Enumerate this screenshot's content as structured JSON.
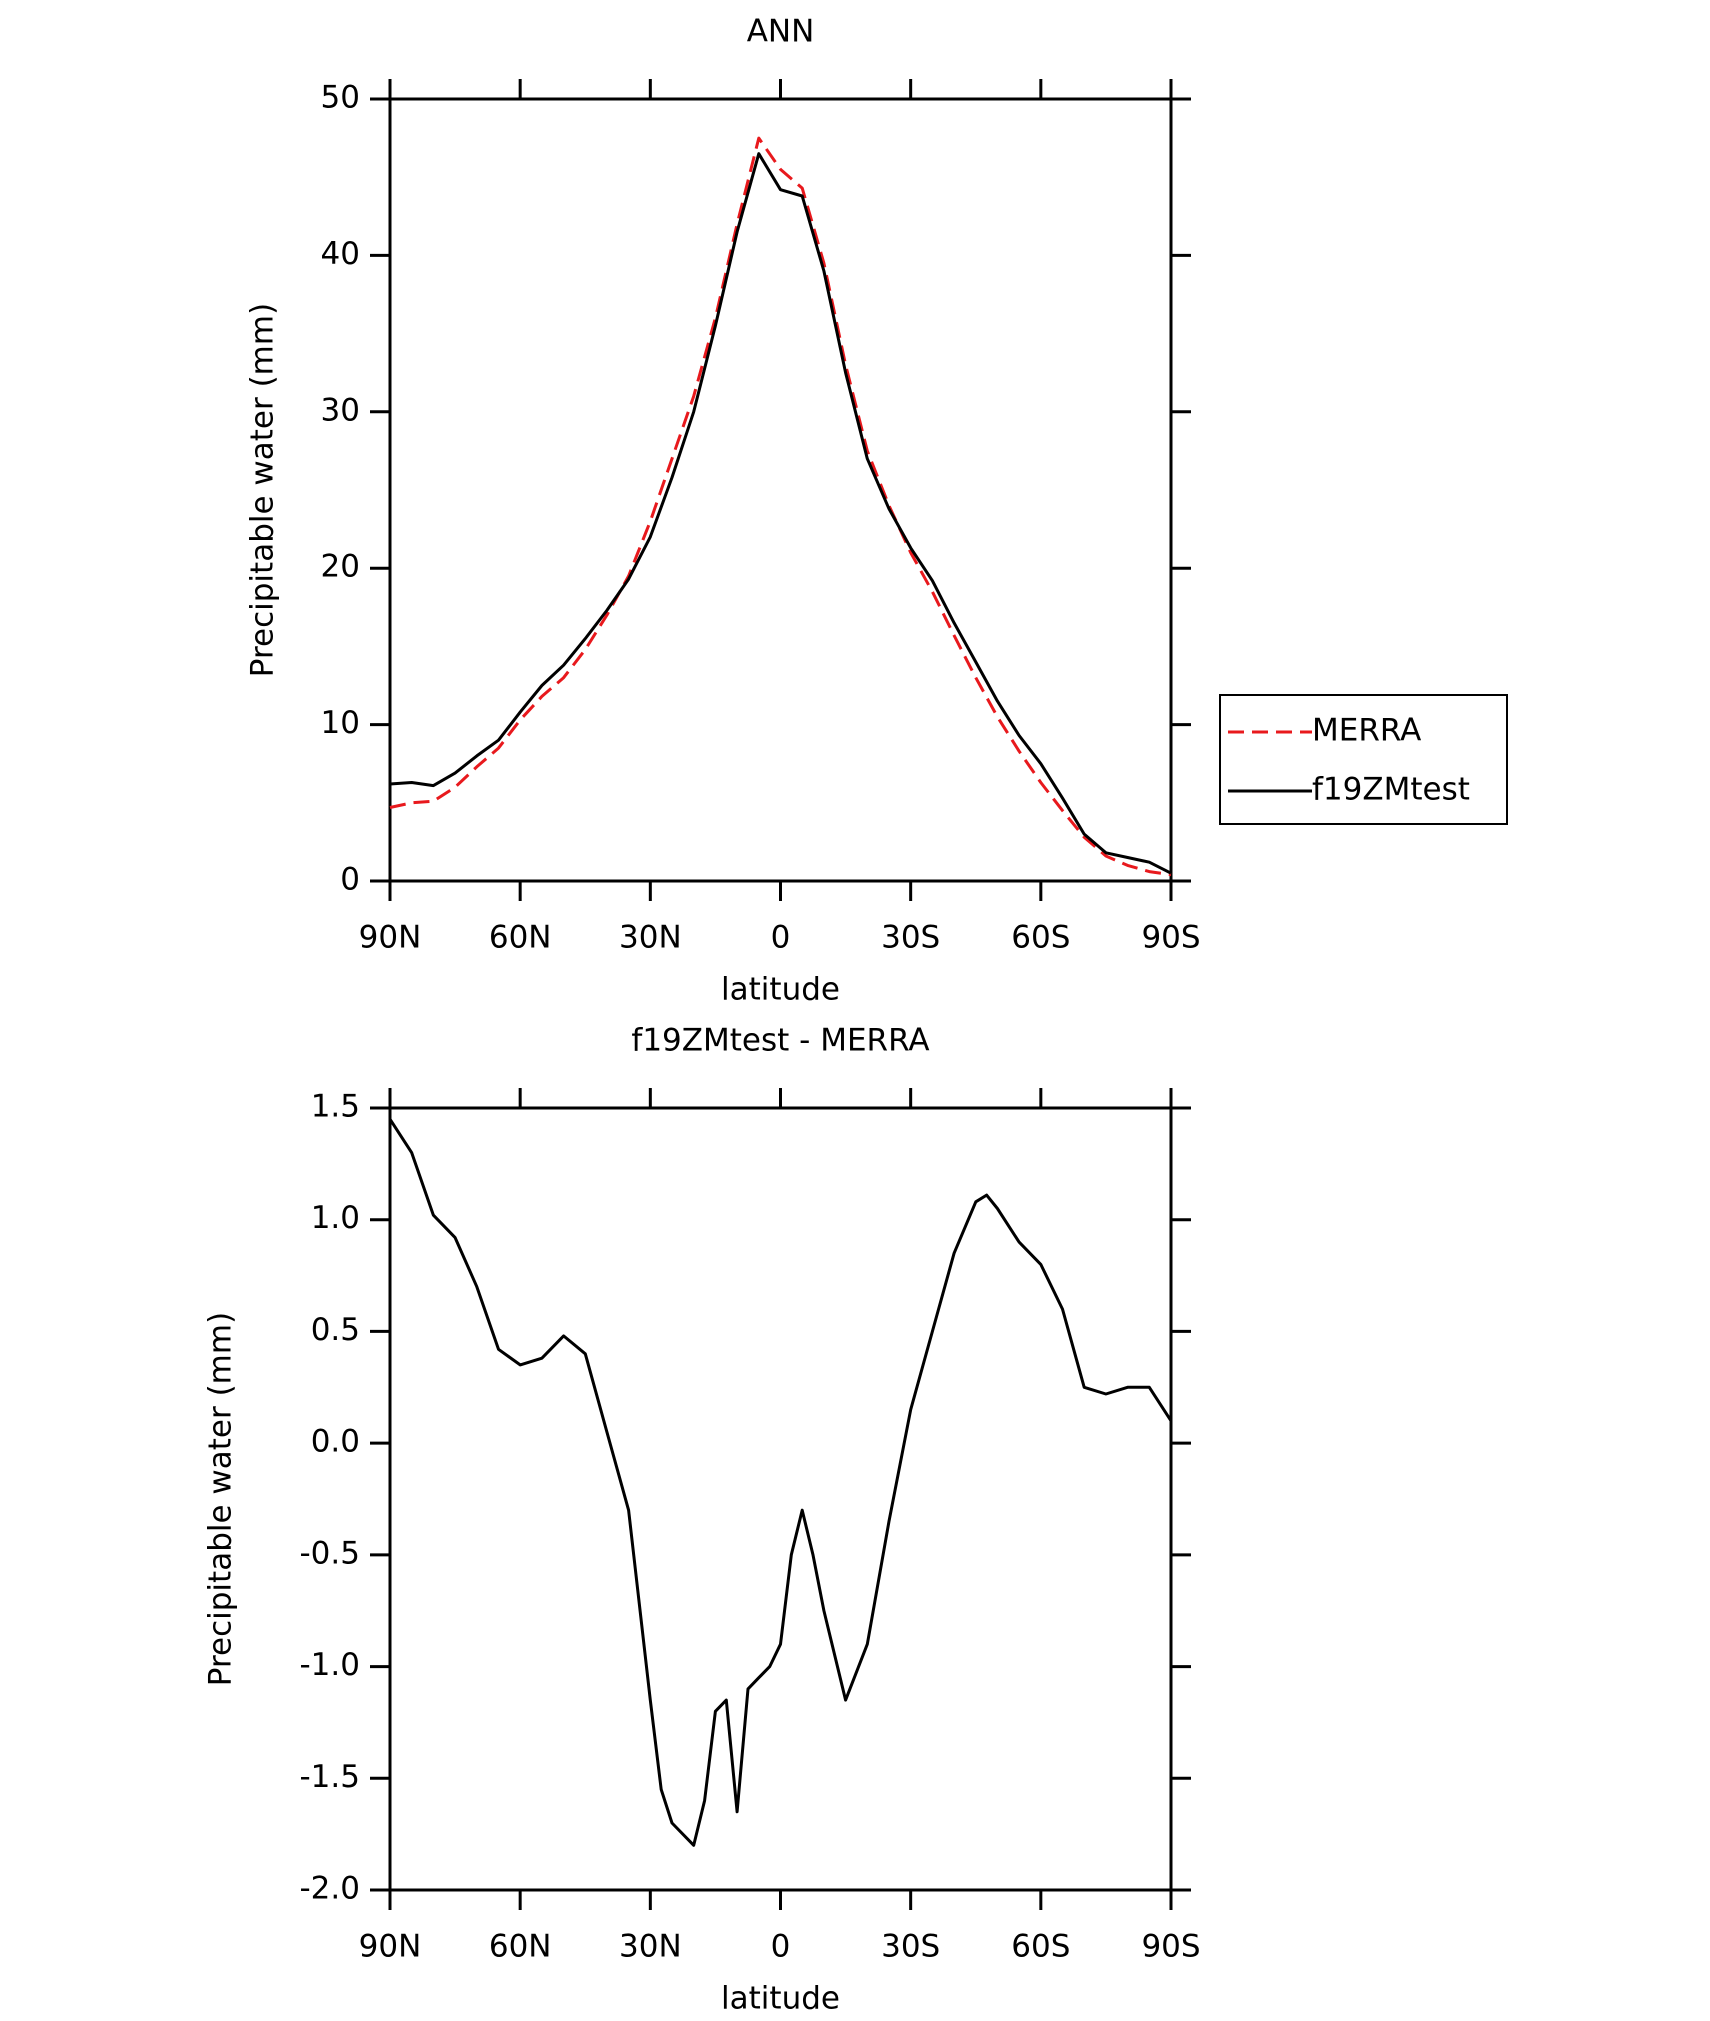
{
  "chart_data": [
    {
      "type": "line",
      "title": "ANN",
      "x_label": "latitude",
      "y_label": "Precipitable water (mm)",
      "xlim": [
        90,
        -90
      ],
      "ylim": [
        0,
        50
      ],
      "xticks": [
        {
          "value": 90,
          "label": "90N"
        },
        {
          "value": 60,
          "label": "60N"
        },
        {
          "value": 30,
          "label": "30N"
        },
        0,
        {
          "value": -30,
          "label": "30S"
        },
        {
          "value": -60,
          "label": "60S"
        },
        {
          "value": -90,
          "label": "90S"
        }
      ],
      "yticks": [
        0,
        10,
        20,
        30,
        40,
        50
      ],
      "legend": "right",
      "x": [
        90,
        85,
        80,
        75,
        70,
        65,
        60,
        55,
        50,
        45,
        40,
        35,
        30,
        25,
        20,
        15,
        10,
        5,
        0,
        -5,
        -10,
        -15,
        -20,
        -25,
        -30,
        -35,
        -40,
        -45,
        -50,
        -55,
        -60,
        -65,
        -70,
        -75,
        -80,
        -85,
        -90
      ],
      "series": [
        {
          "name": "MERRA",
          "color": "#e8191d",
          "line_style": "dashed",
          "values": [
            4.7,
            5.0,
            5.1,
            6.0,
            7.3,
            8.5,
            10.3,
            11.8,
            13.0,
            14.8,
            17.0,
            19.5,
            23,
            27,
            31,
            36,
            42,
            47.5,
            45.5,
            44.3,
            39.5,
            33,
            27.5,
            24,
            21,
            18.5,
            15.7,
            13,
            10.5,
            8.3,
            6.3,
            4.5,
            2.8,
            1.6,
            1.0,
            0.6,
            0.4
          ]
        },
        {
          "name": "f19ZMtest",
          "color": "#000000",
          "line_style": "solid",
          "values": [
            6.2,
            6.3,
            6.1,
            6.9,
            8.0,
            9.0,
            10.8,
            12.5,
            13.8,
            15.5,
            17.3,
            19.3,
            22,
            25.8,
            30,
            35.5,
            41.5,
            46.5,
            44.2,
            43.8,
            39,
            32.5,
            27,
            23.8,
            21.3,
            19.2,
            16.5,
            14,
            11.5,
            9.3,
            7.5,
            5.3,
            3,
            1.8,
            1.5,
            1.2,
            0.5
          ]
        }
      ]
    },
    {
      "type": "line",
      "title": "f19ZMtest - MERRA",
      "x_label": "latitude",
      "y_label": "Precipitable water (mm)",
      "xlim": [
        90,
        -90
      ],
      "ylim": [
        -2,
        1.5
      ],
      "xticks": [
        {
          "value": 90,
          "label": "90N"
        },
        {
          "value": 60,
          "label": "60N"
        },
        {
          "value": 30,
          "label": "30N"
        },
        0,
        {
          "value": -30,
          "label": "30S"
        },
        {
          "value": -60,
          "label": "60S"
        },
        {
          "value": -90,
          "label": "90S"
        }
      ],
      "yticks": [
        {
          "value": -2,
          "label": "-2.0"
        },
        -1.5,
        {
          "value": -1,
          "label": "-1.0"
        },
        -0.5,
        {
          "value": 0,
          "label": "0.0"
        },
        0.5,
        {
          "value": 1,
          "label": "1.0"
        },
        1.5
      ],
      "x": [
        90,
        85,
        80,
        75,
        70,
        65,
        60,
        55,
        50,
        45,
        40,
        35,
        30,
        27.5,
        25,
        20,
        17.5,
        15,
        12.5,
        10,
        7.5,
        5,
        2.5,
        0,
        -2.5,
        -5,
        -7.5,
        -10,
        -15,
        -20,
        -25,
        -30,
        -35,
        -40,
        -45,
        -47.5,
        -50,
        -55,
        -60,
        -65,
        -70,
        -75,
        -80,
        -85,
        -90
      ],
      "series": [
        {
          "name": "f19ZMtest",
          "color": "#000000",
          "line_style": "solid",
          "values": [
            1.45,
            1.3,
            1.02,
            0.92,
            0.7,
            0.42,
            0.35,
            0.38,
            0.48,
            0.4,
            0.05,
            -0.3,
            -1.15,
            -1.55,
            -1.7,
            -1.8,
            -1.6,
            -1.2,
            -1.15,
            -1.65,
            -1.1,
            -1.05,
            -1.0,
            -0.9,
            -0.5,
            -0.3,
            -0.5,
            -0.75,
            -1.15,
            -0.9,
            -0.35,
            0.15,
            0.5,
            0.85,
            1.08,
            1.11,
            1.05,
            0.9,
            0.8,
            0.6,
            0.25,
            0.22,
            0.25,
            0.25,
            0.1
          ]
        }
      ]
    }
  ]
}
